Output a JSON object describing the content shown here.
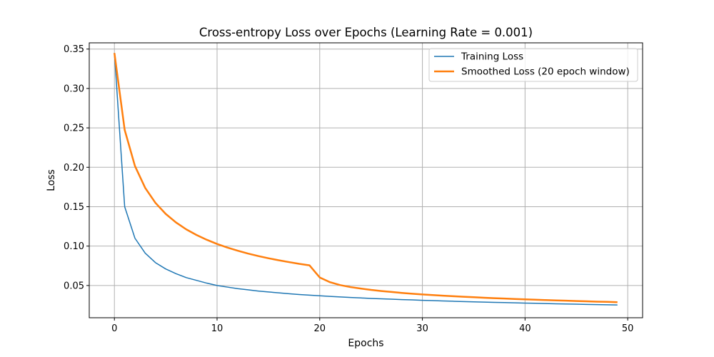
{
  "chart_data": {
    "type": "line",
    "title": "Cross-entropy Loss over Epochs (Learning Rate = 0.001)",
    "xlabel": "Epochs",
    "ylabel": "Loss",
    "xlim": [
      -2.45,
      51.45
    ],
    "ylim": [
      0.0091,
      0.3579
    ],
    "xticks": [
      0,
      10,
      20,
      30,
      40,
      50
    ],
    "yticks": [
      0.05,
      0.1,
      0.15,
      0.2,
      0.25,
      0.3,
      0.35
    ],
    "xtick_labels": [
      "0",
      "10",
      "20",
      "30",
      "40",
      "50"
    ],
    "ytick_labels": [
      "0.05",
      "0.10",
      "0.15",
      "0.20",
      "0.25",
      "0.30",
      "0.35"
    ],
    "grid": true,
    "legend_position": "upper right",
    "x": [
      0,
      1,
      2,
      3,
      4,
      5,
      6,
      7,
      8,
      9,
      10,
      11,
      12,
      13,
      14,
      15,
      16,
      17,
      18,
      19,
      20,
      21,
      22,
      23,
      24,
      25,
      26,
      27,
      28,
      29,
      30,
      31,
      32,
      33,
      34,
      35,
      36,
      37,
      38,
      39,
      40,
      41,
      42,
      43,
      44,
      45,
      46,
      47,
      48,
      49
    ],
    "series": [
      {
        "name": "Training Loss",
        "color": "#1f77b4",
        "values": [
          0.345,
          0.15,
          0.11,
          0.091,
          0.079,
          0.071,
          0.065,
          0.06,
          0.0565,
          0.053,
          0.05,
          0.048,
          0.046,
          0.0445,
          0.043,
          0.0418,
          0.0407,
          0.0396,
          0.0386,
          0.0377,
          0.0369,
          0.0362,
          0.0355,
          0.0348,
          0.0342,
          0.0336,
          0.0331,
          0.0326,
          0.0321,
          0.0317,
          0.0312,
          0.0308,
          0.0304,
          0.03,
          0.0296,
          0.0293,
          0.0289,
          0.0286,
          0.0283,
          0.028,
          0.0277,
          0.0274,
          0.0271,
          0.0268,
          0.0265,
          0.0263,
          0.026,
          0.0258,
          0.0255,
          0.0253
        ]
      },
      {
        "name": "Smoothed Loss (20 epoch window)",
        "color": "#ff7f0e",
        "values": [
          0.345,
          0.2475,
          0.2017,
          0.1738,
          0.1548,
          0.1408,
          0.13,
          0.1212,
          0.1141,
          0.108,
          0.1027,
          0.0982,
          0.0942,
          0.0906,
          0.0874,
          0.0846,
          0.082,
          0.0797,
          0.0775,
          0.0756,
          0.0602,
          0.0542,
          0.0505,
          0.048,
          0.0461,
          0.0444,
          0.043,
          0.0418,
          0.0406,
          0.0396,
          0.0387,
          0.0379,
          0.0371,
          0.0364,
          0.0357,
          0.0351,
          0.0345,
          0.0339,
          0.0334,
          0.0329,
          0.0324,
          0.032,
          0.0315,
          0.0311,
          0.0307,
          0.0303,
          0.0299,
          0.0295,
          0.0292,
          0.0288
        ]
      }
    ]
  }
}
